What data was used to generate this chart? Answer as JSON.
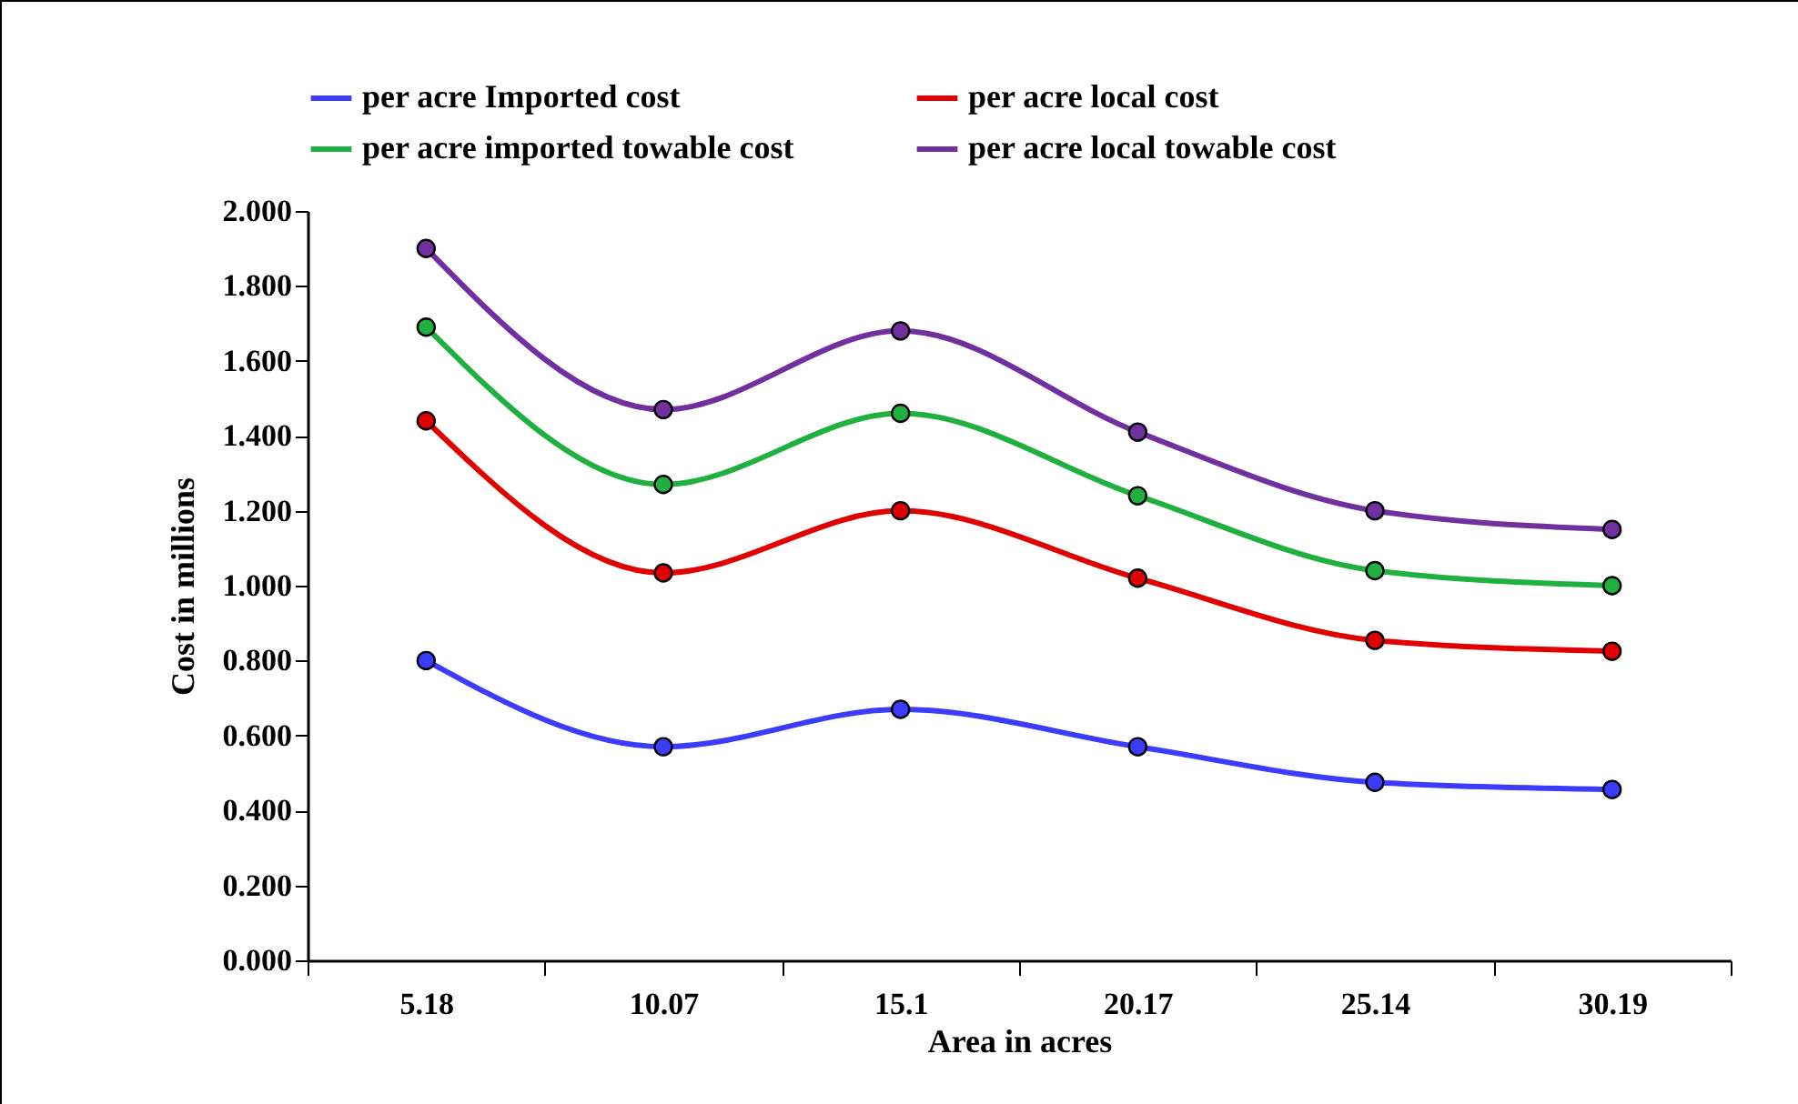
{
  "chart_data": {
    "type": "line",
    "xlabel": "Area in acres",
    "ylabel": "Cost in millions",
    "categories": [
      "5.18",
      "10.07",
      "15.1",
      "20.17",
      "25.14",
      "30.19"
    ],
    "series": [
      {
        "name": "per acre Imported cost",
        "color": "#3c3cff",
        "values": [
          0.8,
          0.57,
          0.67,
          0.57,
          0.475,
          0.456
        ]
      },
      {
        "name": "per acre local cost",
        "color": "#e00000",
        "values": [
          1.44,
          1.034,
          1.2,
          1.02,
          0.854,
          0.825
        ]
      },
      {
        "name": "per acre imported towable cost",
        "color": "#20b040",
        "values": [
          1.69,
          1.27,
          1.46,
          1.24,
          1.04,
          1.0
        ]
      },
      {
        "name": "per acre local towable cost",
        "color": "#7030a0",
        "values": [
          1.9,
          1.47,
          1.68,
          1.41,
          1.2,
          1.15
        ]
      }
    ],
    "ylim": [
      0,
      2
    ],
    "yticks": [
      {
        "value": 0,
        "label": "0.000"
      },
      {
        "value": 0.2,
        "label": "0.200"
      },
      {
        "value": 0.4,
        "label": "0.400"
      },
      {
        "value": 0.6,
        "label": "0.600"
      },
      {
        "value": 0.8,
        "label": "0.800"
      },
      {
        "value": 1,
        "label": "1.000"
      },
      {
        "value": 1.2,
        "label": "1.200"
      },
      {
        "value": 1.4,
        "label": "1.400"
      },
      {
        "value": 1.6,
        "label": "1.600"
      },
      {
        "value": 1.8,
        "label": "1.800"
      },
      {
        "value": 2,
        "label": "2.000"
      }
    ],
    "legend": "top",
    "marker": "circle",
    "line_style": "solid",
    "grid": false
  }
}
